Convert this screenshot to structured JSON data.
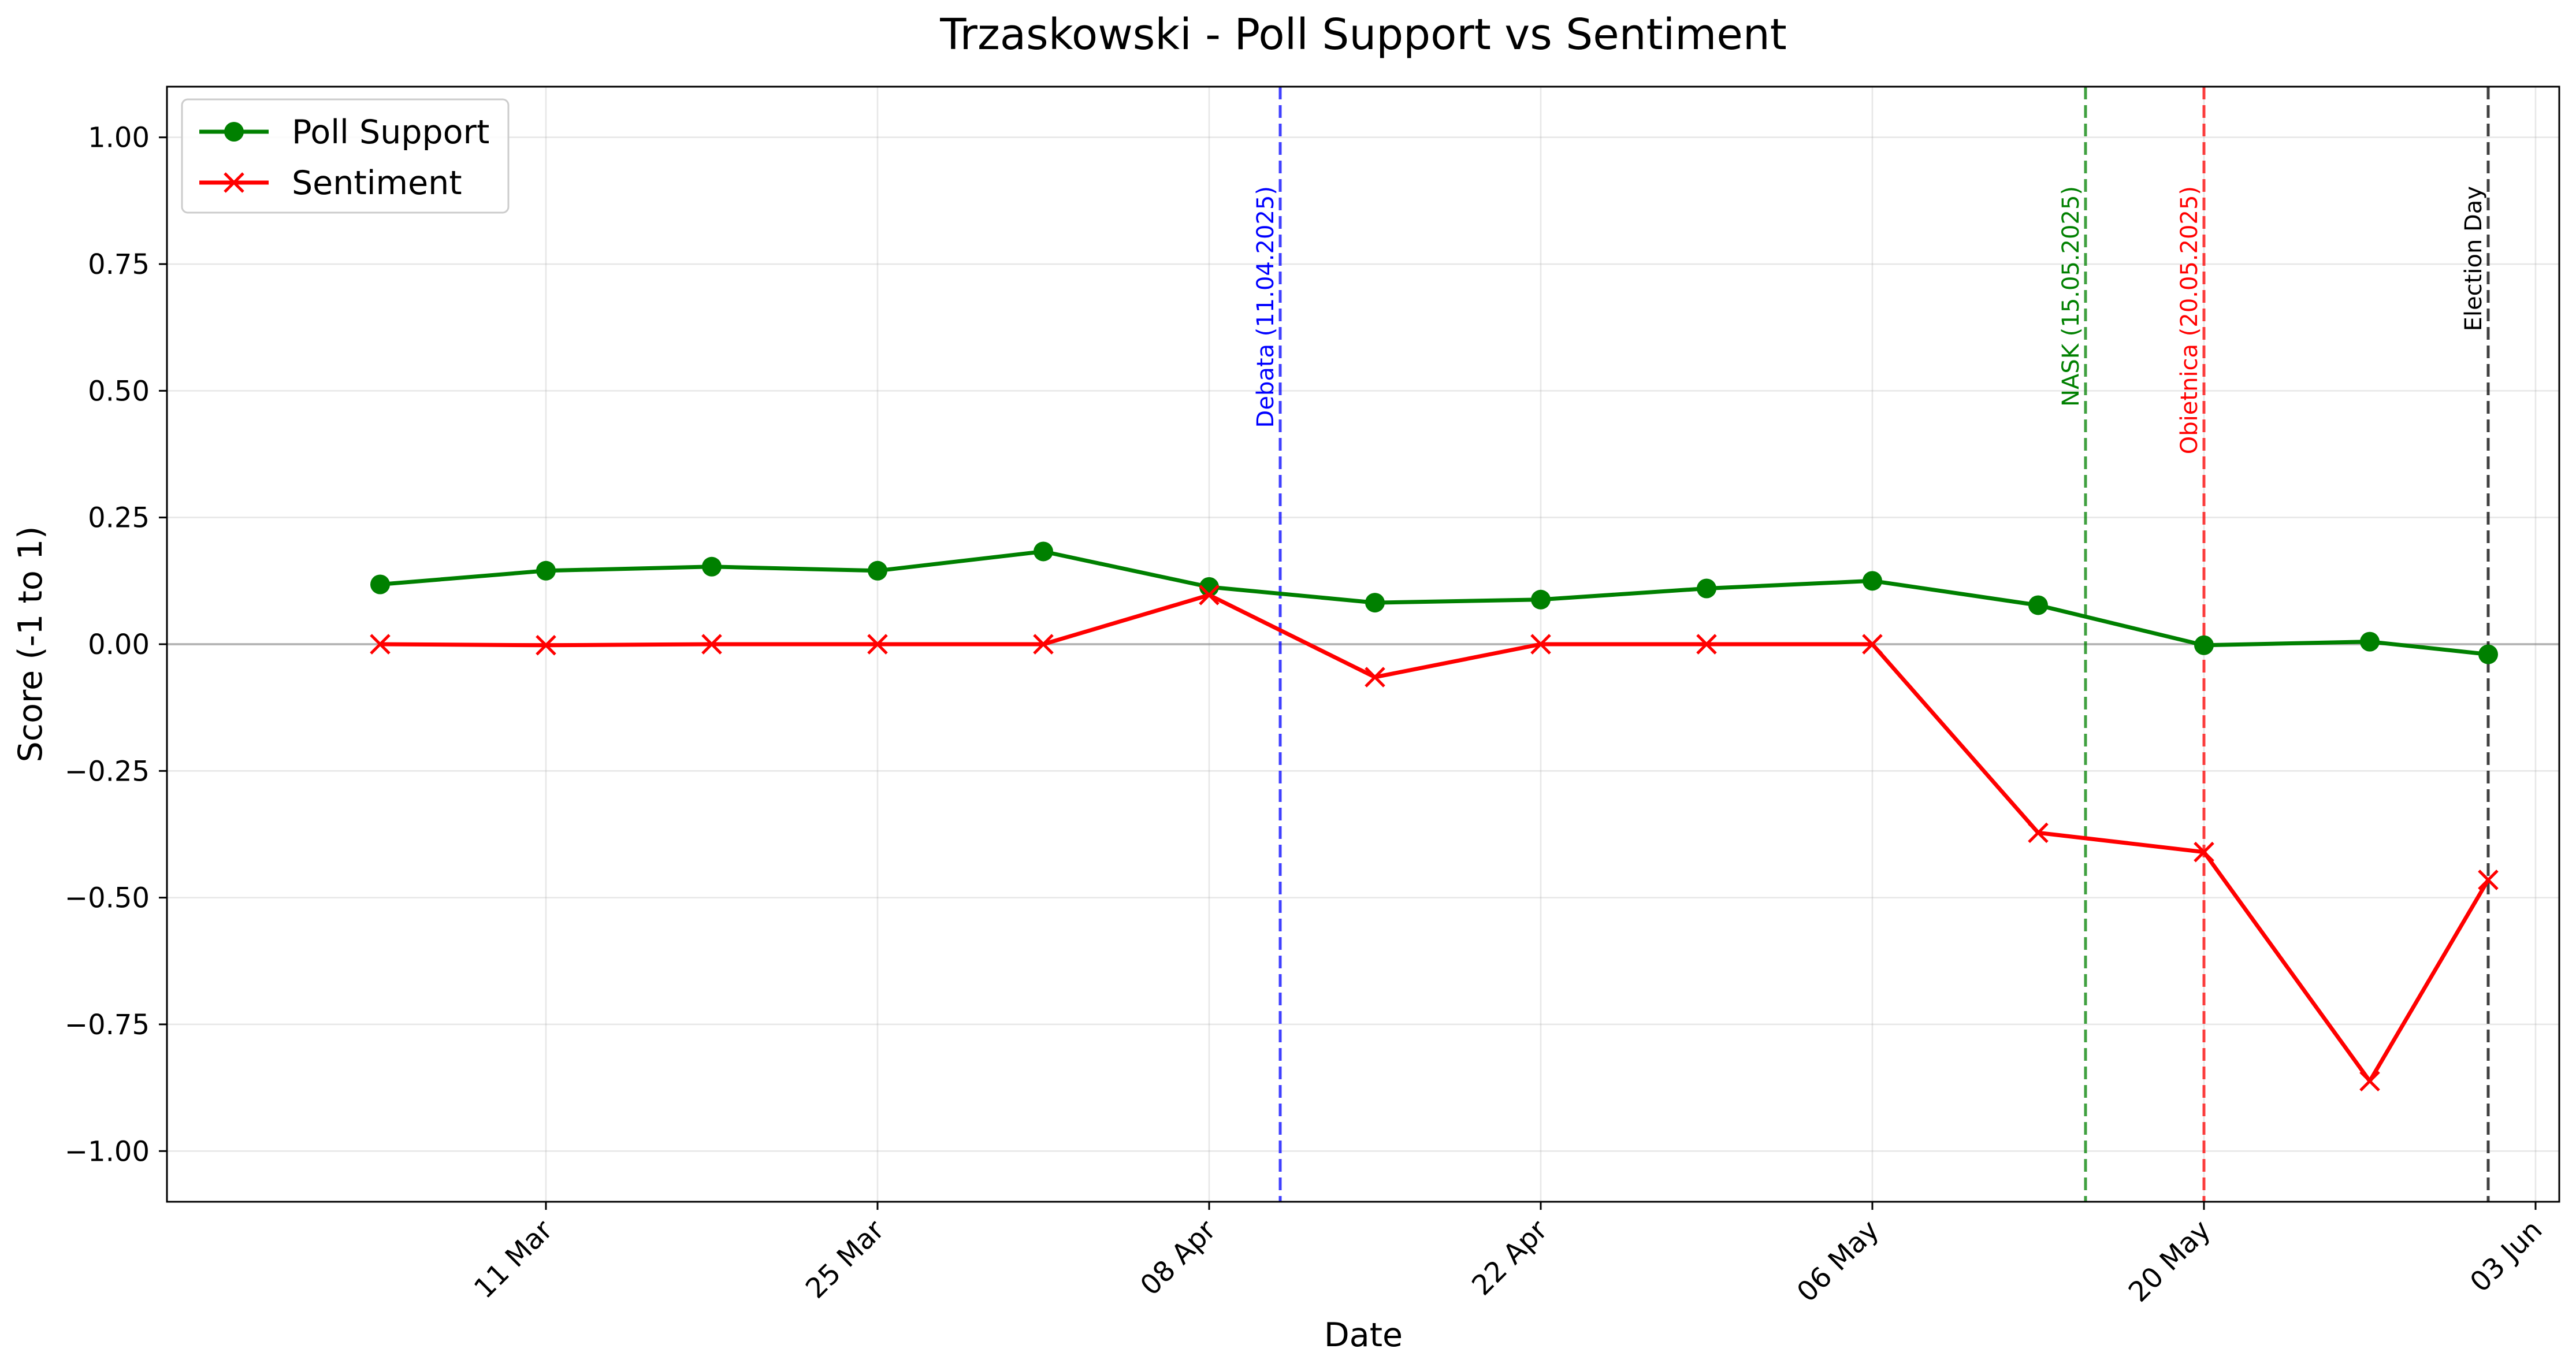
{
  "chart_data": {
    "type": "line",
    "title": "Trzaskowski - Poll Support vs Sentiment",
    "xlabel": "Date",
    "ylabel": "Score (-1 to 1)",
    "x_axis_type": "date",
    "xlim": [
      "2025-02-23",
      "2025-06-04"
    ],
    "ylim": [
      -1.1,
      1.1
    ],
    "x_ticks": [
      {
        "date": "2025-03-11",
        "label": "11 Mar"
      },
      {
        "date": "2025-03-25",
        "label": "25 Mar"
      },
      {
        "date": "2025-04-08",
        "label": "08 Apr"
      },
      {
        "date": "2025-04-22",
        "label": "22 Apr"
      },
      {
        "date": "2025-05-06",
        "label": "06 May"
      },
      {
        "date": "2025-05-20",
        "label": "20 May"
      },
      {
        "date": "2025-06-03",
        "label": "03 Jun"
      }
    ],
    "y_ticks": [
      {
        "value": 1.0,
        "label": "1.00"
      },
      {
        "value": 0.75,
        "label": "0.75"
      },
      {
        "value": 0.5,
        "label": "0.50"
      },
      {
        "value": 0.25,
        "label": "0.25"
      },
      {
        "value": 0.0,
        "label": "0.00"
      },
      {
        "value": -0.25,
        "label": "−0.25"
      },
      {
        "value": -0.5,
        "label": "−0.50"
      },
      {
        "value": -0.75,
        "label": "−0.75"
      },
      {
        "value": -1.0,
        "label": "−1.00"
      }
    ],
    "grid": true,
    "legend_position": "top-left",
    "series": [
      {
        "name": "Poll Support",
        "color": "#008000",
        "marker": "circle",
        "points": [
          {
            "x": "2025-03-04",
            "y": 0.118
          },
          {
            "x": "2025-03-11",
            "y": 0.145
          },
          {
            "x": "2025-03-18",
            "y": 0.153
          },
          {
            "x": "2025-03-25",
            "y": 0.145
          },
          {
            "x": "2025-04-01",
            "y": 0.183
          },
          {
            "x": "2025-04-08",
            "y": 0.113
          },
          {
            "x": "2025-04-15",
            "y": 0.082
          },
          {
            "x": "2025-04-22",
            "y": 0.088
          },
          {
            "x": "2025-04-29",
            "y": 0.11
          },
          {
            "x": "2025-05-06",
            "y": 0.125
          },
          {
            "x": "2025-05-13",
            "y": 0.077
          },
          {
            "x": "2025-05-20",
            "y": -0.002
          },
          {
            "x": "2025-05-27",
            "y": 0.005
          },
          {
            "x": "2025-06-01",
            "y": -0.02
          }
        ]
      },
      {
        "name": "Sentiment",
        "color": "#ff0000",
        "marker": "x",
        "points": [
          {
            "x": "2025-03-04",
            "y": 0.0
          },
          {
            "x": "2025-03-11",
            "y": -0.002
          },
          {
            "x": "2025-03-18",
            "y": 0.0
          },
          {
            "x": "2025-03-25",
            "y": 0.0
          },
          {
            "x": "2025-04-01",
            "y": 0.0
          },
          {
            "x": "2025-04-08",
            "y": 0.097
          },
          {
            "x": "2025-04-15",
            "y": -0.065
          },
          {
            "x": "2025-04-22",
            "y": 0.0
          },
          {
            "x": "2025-04-29",
            "y": 0.0
          },
          {
            "x": "2025-05-06",
            "y": 0.0
          },
          {
            "x": "2025-05-13",
            "y": -0.372
          },
          {
            "x": "2025-05-20",
            "y": -0.41
          },
          {
            "x": "2025-05-27",
            "y": -0.862
          },
          {
            "x": "2025-06-01",
            "y": -0.465
          }
        ]
      }
    ],
    "events": [
      {
        "date": "2025-04-11",
        "label": "Debata (11.04.2025)",
        "color": "#0000ff"
      },
      {
        "date": "2025-05-15",
        "label": "NASK (15.05.2025)",
        "color": "#008000"
      },
      {
        "date": "2025-05-20",
        "label": "Obietnica (20.05.2025)",
        "color": "#ff0000"
      },
      {
        "date": "2025-06-01",
        "label": "Election Day",
        "color": "#000000"
      }
    ]
  }
}
